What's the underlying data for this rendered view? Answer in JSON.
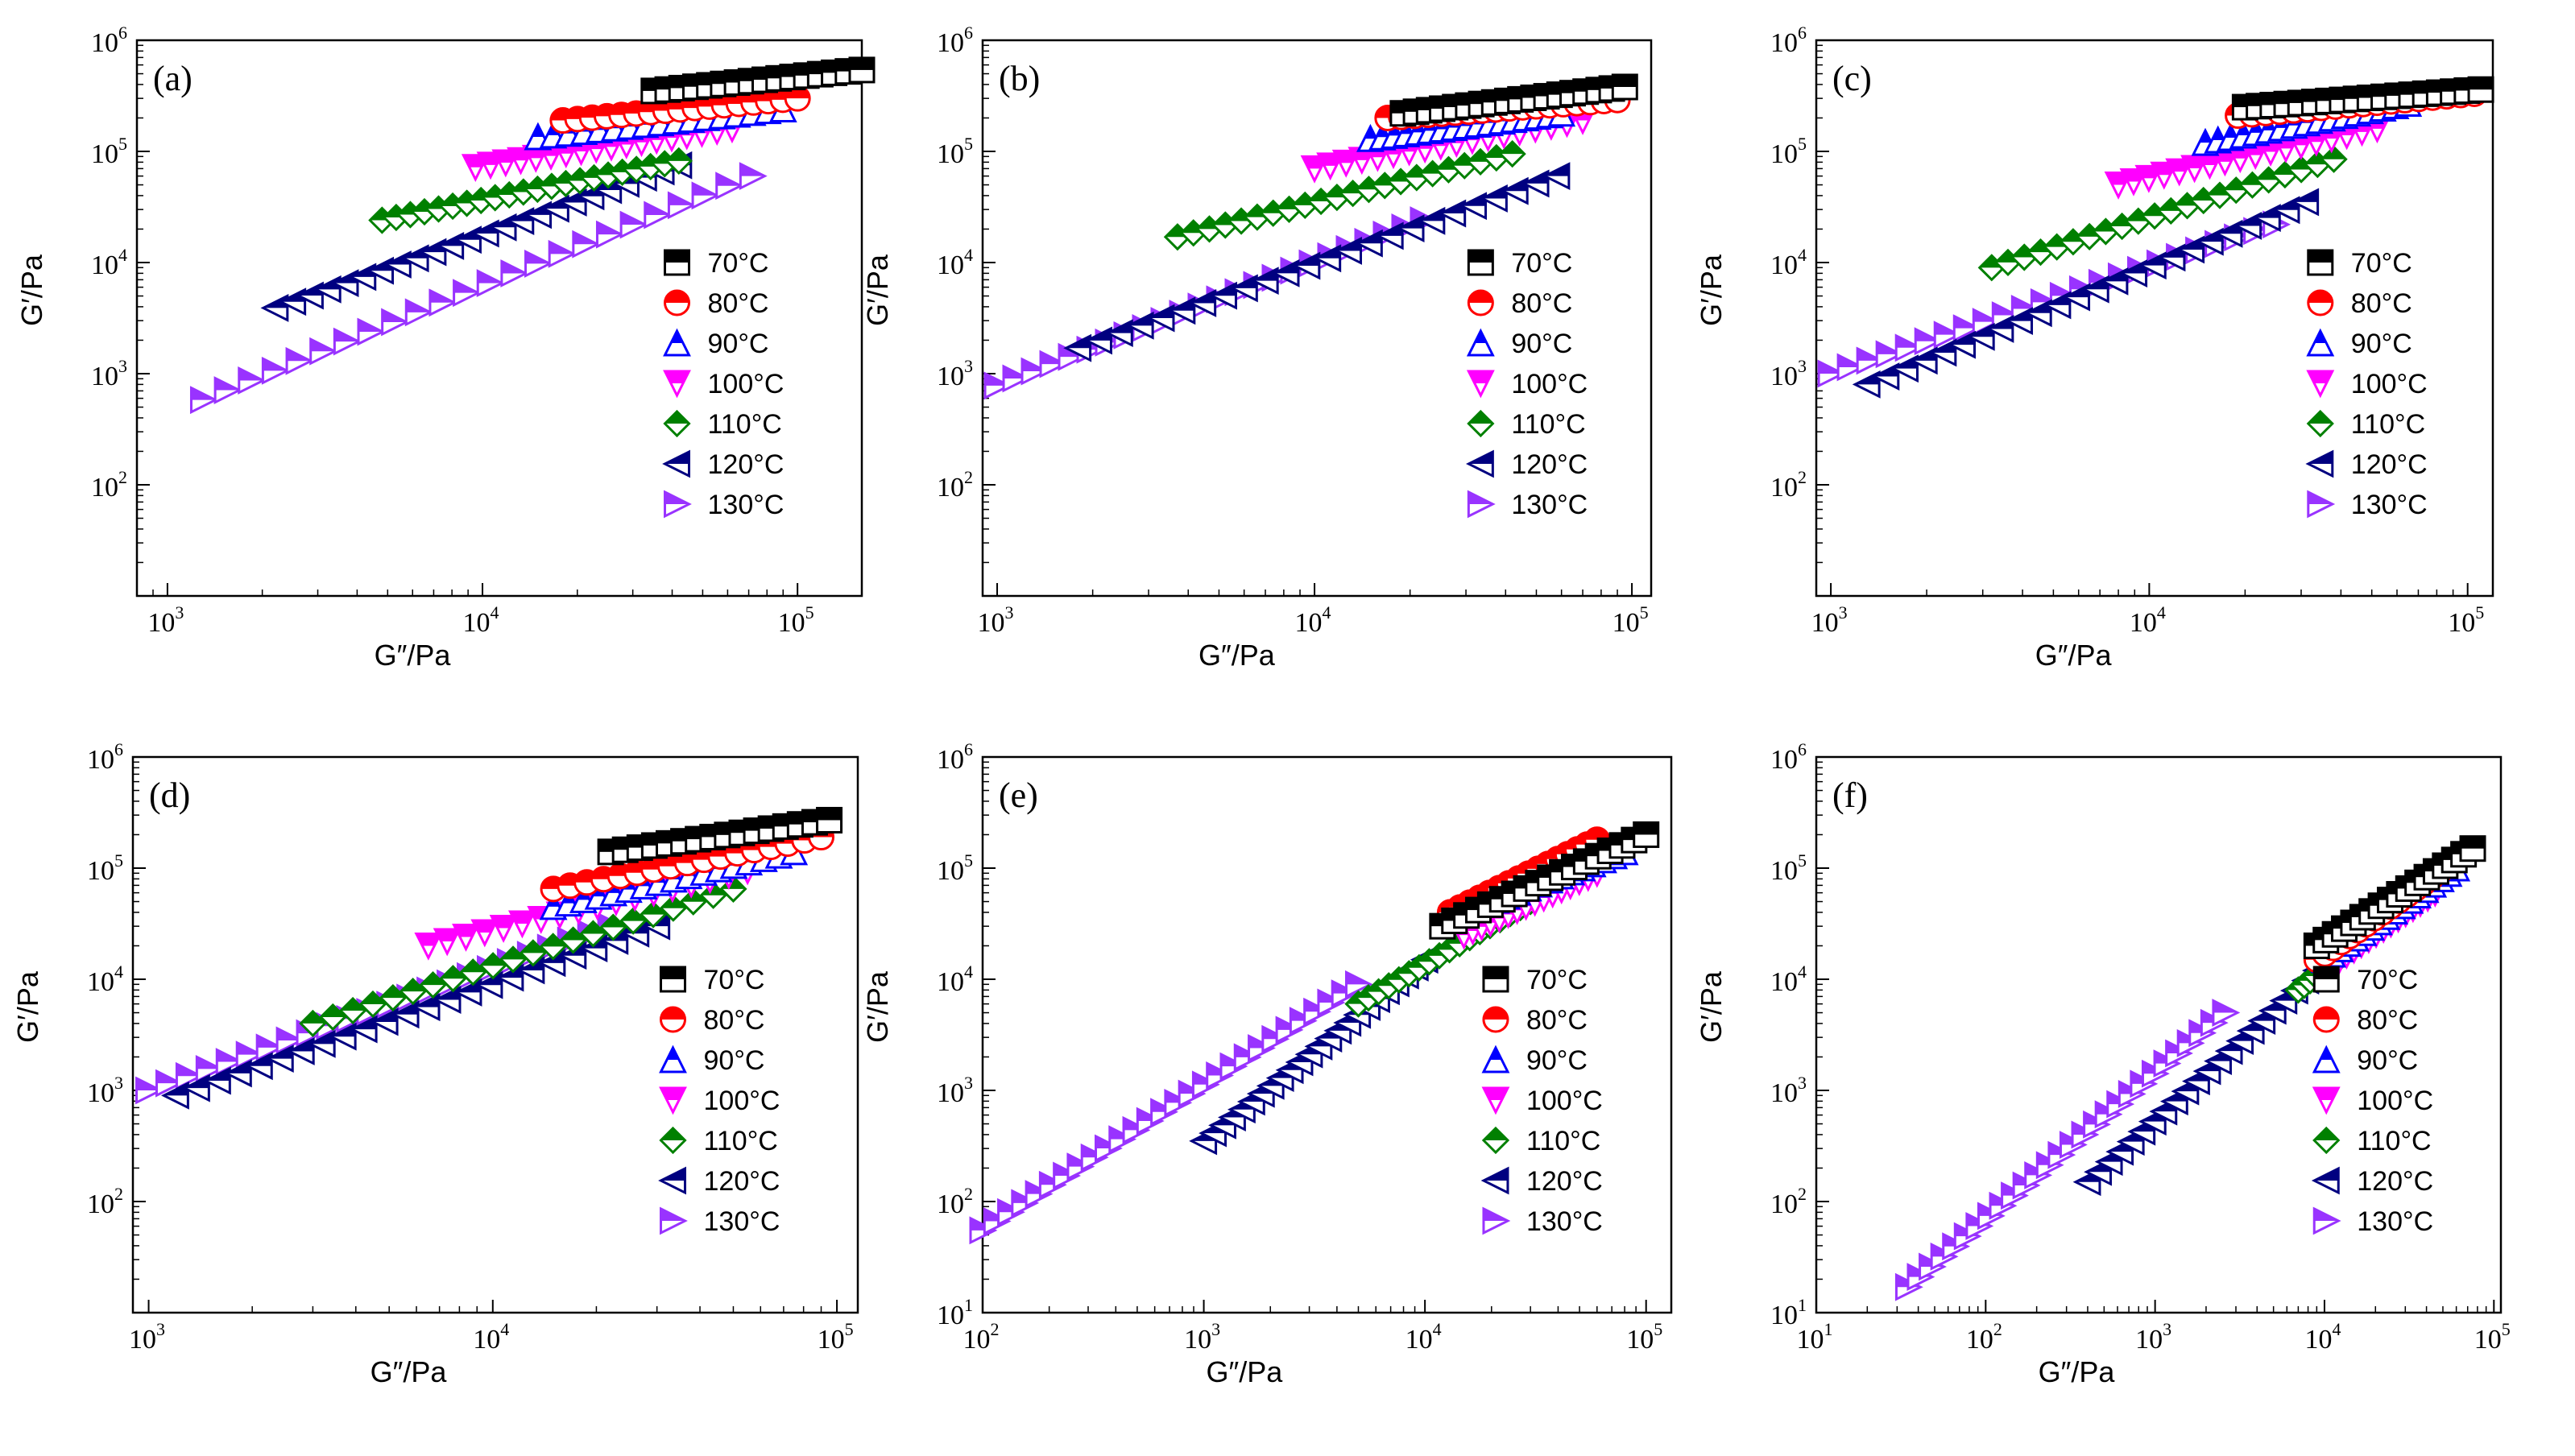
{
  "figure": {
    "legend_order": [
      "70°C",
      "80°C",
      "90°C",
      "100°C",
      "110°C",
      "120°C",
      "130°C"
    ],
    "series_styles": {
      "70°C": {
        "color": "#000000",
        "marker": "square"
      },
      "80°C": {
        "color": "#ff0000",
        "marker": "circle"
      },
      "90°C": {
        "color": "#0000ff",
        "marker": "triangle-up"
      },
      "100°C": {
        "color": "#ff00ff",
        "marker": "triangle-down"
      },
      "110°C": {
        "color": "#008000",
        "marker": "diamond"
      },
      "120°C": {
        "color": "#000080",
        "marker": "triangle-left"
      },
      "130°C": {
        "color": "#9933ff",
        "marker": "triangle-right"
      }
    }
  },
  "chart_data": [
    {
      "type": "scatter",
      "panel": "(a)",
      "xscale": "log",
      "yscale": "log",
      "xlabel": "G″/Pa",
      "ylabel": "G′/Pa",
      "xlim": [
        800,
        160000
      ],
      "ylim": [
        10,
        1000000
      ],
      "xticks": [
        {
          "base": "10",
          "exp": "3"
        },
        {
          "base": "10",
          "exp": "4"
        },
        {
          "base": "10",
          "exp": "5"
        }
      ],
      "yticks": [
        {
          "base": "10",
          "exp": "2"
        },
        {
          "base": "10",
          "exp": "3"
        },
        {
          "base": "10",
          "exp": "4"
        },
        {
          "base": "10",
          "exp": "5"
        },
        {
          "base": "10",
          "exp": "6"
        }
      ],
      "tick_values_x": [
        1000,
        10000,
        100000
      ],
      "tick_values_y": [
        100,
        1000,
        10000,
        100000,
        1000000
      ],
      "legend": [
        "70°C",
        "80°C",
        "90°C",
        "100°C",
        "110°C",
        "120°C",
        "130°C"
      ],
      "series": [
        {
          "name": "70°C",
          "start": [
            35000,
            350000
          ],
          "end": [
            160000,
            540000
          ],
          "n": 16
        },
        {
          "name": "80°C",
          "start": [
            18000,
            190000
          ],
          "end": [
            100000,
            300000
          ],
          "n": 17
        },
        {
          "name": "90°C",
          "start": [
            15000,
            135000
          ],
          "end": [
            90000,
            240000
          ],
          "n": 17
        },
        {
          "name": "100°C",
          "start": [
            9500,
            72000
          ],
          "end": [
            62000,
            160000
          ],
          "n": 18
        },
        {
          "name": "110°C",
          "start": [
            4800,
            24000
          ],
          "end": [
            42000,
            82000
          ],
          "n": 22
        },
        {
          "name": "120°C",
          "start": [
            2200,
            3900
          ],
          "end": [
            42000,
            75000
          ],
          "n": 24
        },
        {
          "name": "130°C",
          "start": [
            1300,
            580
          ],
          "end": [
            72000,
            60000
          ],
          "n": 24
        }
      ]
    },
    {
      "type": "scatter",
      "panel": "(b)",
      "xscale": "log",
      "yscale": "log",
      "xlabel": "G″/Pa",
      "ylabel": "G′/Pa",
      "xlim": [
        900,
        115000
      ],
      "ylim": [
        10,
        1000000
      ],
      "xticks": [
        {
          "base": "10",
          "exp": "3"
        },
        {
          "base": "10",
          "exp": "4"
        },
        {
          "base": "10",
          "exp": "5"
        }
      ],
      "yticks": [
        {
          "base": "10",
          "exp": "2"
        },
        {
          "base": "10",
          "exp": "3"
        },
        {
          "base": "10",
          "exp": "4"
        },
        {
          "base": "10",
          "exp": "5"
        },
        {
          "base": "10",
          "exp": "6"
        }
      ],
      "tick_values_x": [
        1000,
        10000,
        100000
      ],
      "tick_values_y": [
        100,
        1000,
        10000,
        100000,
        1000000
      ],
      "legend": [
        "70°C",
        "80°C",
        "90°C",
        "100°C",
        "110°C",
        "120°C",
        "130°C"
      ],
      "series": [
        {
          "name": "70°C",
          "start": [
            19000,
            220000
          ],
          "end": [
            95000,
            380000
          ],
          "n": 18
        },
        {
          "name": "80°C",
          "start": [
            17000,
            200000
          ],
          "end": [
            90000,
            290000
          ],
          "n": 18
        },
        {
          "name": "90°C",
          "start": [
            15000,
            130000
          ],
          "end": [
            60000,
            220000
          ],
          "n": 17
        },
        {
          "name": "100°C",
          "start": [
            10000,
            70000
          ],
          "end": [
            70000,
            190000
          ],
          "n": 18
        },
        {
          "name": "110°C",
          "start": [
            3700,
            17000
          ],
          "end": [
            42000,
            95000
          ],
          "n": 22
        },
        {
          "name": "120°C",
          "start": [
            1800,
            1700
          ],
          "end": [
            58000,
            60000
          ],
          "n": 24
        },
        {
          "name": "130°C",
          "start": [
            1000,
            780
          ],
          "end": [
            22000,
            24000
          ],
          "n": 24
        }
      ]
    },
    {
      "type": "scatter",
      "panel": "(c)",
      "xscale": "log",
      "yscale": "log",
      "xlabel": "G″/Pa",
      "ylabel": "G′/Pa",
      "xlim": [
        900,
        120000
      ],
      "ylim": [
        10,
        1000000
      ],
      "xticks": [
        {
          "base": "10",
          "exp": "3"
        },
        {
          "base": "10",
          "exp": "4"
        },
        {
          "base": "10",
          "exp": "5"
        }
      ],
      "yticks": [
        {
          "base": "10",
          "exp": "2"
        },
        {
          "base": "10",
          "exp": "3"
        },
        {
          "base": "10",
          "exp": "4"
        },
        {
          "base": "10",
          "exp": "5"
        },
        {
          "base": "10",
          "exp": "6"
        }
      ],
      "tick_values_x": [
        1000,
        10000,
        100000
      ],
      "tick_values_y": [
        100,
        1000,
        10000,
        100000,
        1000000
      ],
      "legend": [
        "70°C",
        "80°C",
        "90°C",
        "100°C",
        "110°C",
        "120°C",
        "130°C"
      ],
      "series": [
        {
          "name": "70°C",
          "start": [
            20000,
            250000
          ],
          "end": [
            110000,
            360000
          ],
          "n": 18
        },
        {
          "name": "80°C",
          "start": [
            19000,
            210000
          ],
          "end": [
            105000,
            330000
          ],
          "n": 18
        },
        {
          "name": "90°C",
          "start": [
            15000,
            120000
          ],
          "end": [
            65000,
            270000
          ],
          "n": 17
        },
        {
          "name": "100°C",
          "start": [
            8000,
            50000
          ],
          "end": [
            52000,
            160000
          ],
          "n": 18
        },
        {
          "name": "110°C",
          "start": [
            3200,
            9000
          ],
          "end": [
            38000,
            85000
          ],
          "n": 22
        },
        {
          "name": "120°C",
          "start": [
            1300,
            800
          ],
          "end": [
            31000,
            35000
          ],
          "n": 24
        },
        {
          "name": "130°C",
          "start": [
            1000,
            1000
          ],
          "end": [
            25000,
            22000
          ],
          "n": 24
        }
      ]
    },
    {
      "type": "scatter",
      "panel": "(d)",
      "xscale": "log",
      "yscale": "log",
      "xlabel": "G″/Pa",
      "ylabel": "G′/Pa",
      "xlim": [
        900,
        115000
      ],
      "ylim": [
        10,
        1000000
      ],
      "xticks": [
        {
          "base": "10",
          "exp": "3"
        },
        {
          "base": "10",
          "exp": "4"
        },
        {
          "base": "10",
          "exp": "5"
        }
      ],
      "yticks": [
        {
          "base": "10",
          "exp": "2"
        },
        {
          "base": "10",
          "exp": "3"
        },
        {
          "base": "10",
          "exp": "4"
        },
        {
          "base": "10",
          "exp": "5"
        },
        {
          "base": "10",
          "exp": "6"
        }
      ],
      "tick_values_x": [
        1000,
        10000,
        100000
      ],
      "tick_values_y": [
        100,
        1000,
        10000,
        100000,
        1000000
      ],
      "legend": [
        "70°C",
        "80°C",
        "90°C",
        "100°C",
        "110°C",
        "120°C",
        "130°C"
      ],
      "series": [
        {
          "name": "70°C",
          "start": [
            22000,
            140000
          ],
          "end": [
            95000,
            270000
          ],
          "n": 16
        },
        {
          "name": "80°C",
          "start": [
            15000,
            65000
          ],
          "end": [
            90000,
            190000
          ],
          "n": 17
        },
        {
          "name": "90°C",
          "start": [
            15000,
            45000
          ],
          "end": [
            75000,
            140000
          ],
          "n": 17
        },
        {
          "name": "100°C",
          "start": [
            6500,
            20000
          ],
          "end": [
            55000,
            95000
          ],
          "n": 18
        },
        {
          "name": "110°C",
          "start": [
            3000,
            4000
          ],
          "end": [
            50000,
            65000
          ],
          "n": 22
        },
        {
          "name": "120°C",
          "start": [
            1200,
            900
          ],
          "end": [
            30000,
            30000
          ],
          "n": 24
        },
        {
          "name": "130°C",
          "start": [
            1000,
            1000
          ],
          "end": [
            22000,
            30000
          ],
          "n": 24
        }
      ]
    },
    {
      "type": "scatter",
      "panel": "(e)",
      "xscale": "log",
      "yscale": "log",
      "xlabel": "G″/Pa",
      "ylabel": "G′/Pa",
      "xlim": [
        100,
        130000
      ],
      "ylim": [
        10,
        1000000
      ],
      "xticks": [
        {
          "base": "10",
          "exp": "2"
        },
        {
          "base": "10",
          "exp": "3"
        },
        {
          "base": "10",
          "exp": "4"
        },
        {
          "base": "10",
          "exp": "5"
        }
      ],
      "yticks": [
        {
          "base": "10",
          "exp": "1"
        },
        {
          "base": "10",
          "exp": "2"
        },
        {
          "base": "10",
          "exp": "3"
        },
        {
          "base": "10",
          "exp": "4"
        },
        {
          "base": "10",
          "exp": "5"
        },
        {
          "base": "10",
          "exp": "6"
        }
      ],
      "tick_values_x": [
        100,
        1000,
        10000,
        100000
      ],
      "tick_values_y": [
        10,
        100,
        1000,
        10000,
        100000,
        1000000
      ],
      "legend": [
        "70°C",
        "80°C",
        "90°C",
        "100°C",
        "110°C",
        "120°C",
        "130°C"
      ],
      "series": [
        {
          "name": "70°C",
          "start": [
            12000,
            30000
          ],
          "end": [
            100000,
            200000
          ],
          "n": 18
        },
        {
          "name": "80°C",
          "start": [
            13000,
            40000
          ],
          "end": [
            60000,
            180000
          ],
          "n": 16
        },
        {
          "name": "90°C",
          "start": [
            15000,
            40000
          ],
          "end": [
            80000,
            140000
          ],
          "n": 16
        },
        {
          "name": "100°C",
          "start": [
            15000,
            25000
          ],
          "end": [
            60000,
            90000
          ],
          "n": 16
        },
        {
          "name": "110°C",
          "start": [
            5000,
            6000
          ],
          "end": [
            30000,
            50000
          ],
          "n": 18
        },
        {
          "name": "120°C",
          "start": [
            1000,
            350
          ],
          "end": [
            10000,
            15000
          ],
          "n": 24
        },
        {
          "name": "130°C",
          "start": [
            100,
            55
          ],
          "end": [
            5000,
            9000
          ],
          "n": 28
        }
      ]
    },
    {
      "type": "scatter",
      "panel": "(f)",
      "xscale": "log",
      "yscale": "log",
      "xlabel": "G″/Pa",
      "ylabel": "G′/Pa",
      "xlim": [
        10,
        110000
      ],
      "ylim": [
        10,
        1000000
      ],
      "xticks": [
        {
          "base": "10",
          "exp": "1"
        },
        {
          "base": "10",
          "exp": "2"
        },
        {
          "base": "10",
          "exp": "3"
        },
        {
          "base": "10",
          "exp": "4"
        },
        {
          "base": "10",
          "exp": "5"
        }
      ],
      "yticks": [
        {
          "base": "10",
          "exp": "1"
        },
        {
          "base": "10",
          "exp": "2"
        },
        {
          "base": "10",
          "exp": "3"
        },
        {
          "base": "10",
          "exp": "4"
        },
        {
          "base": "10",
          "exp": "5"
        },
        {
          "base": "10",
          "exp": "6"
        }
      ],
      "tick_values_x": [
        10,
        100,
        1000,
        10000,
        100000
      ],
      "tick_values_y": [
        10,
        100,
        1000,
        10000,
        100000,
        1000000
      ],
      "legend": [
        "70°C",
        "80°C",
        "90°C",
        "100°C",
        "110°C",
        "120°C",
        "130°C"
      ],
      "series": [
        {
          "name": "70°C",
          "start": [
            9000,
            20000
          ],
          "end": [
            75000,
            150000
          ],
          "n": 18
        },
        {
          "name": "80°C",
          "start": [
            9000,
            15000
          ],
          "end": [
            60000,
            120000
          ],
          "n": 18
        },
        {
          "name": "90°C",
          "start": [
            10000,
            15000
          ],
          "end": [
            60000,
            100000
          ],
          "n": 18
        },
        {
          "name": "100°C",
          "start": [
            10000,
            12000
          ],
          "end": [
            45000,
            60000
          ],
          "n": 16
        },
        {
          "name": "110°C",
          "start": [
            7000,
            8000
          ],
          "end": [
            20000,
            28000
          ],
          "n": 14
        },
        {
          "name": "120°C",
          "start": [
            400,
            150
          ],
          "end": [
            9000,
            12000
          ],
          "n": 22
        },
        {
          "name": "130°C",
          "start": [
            35,
            17
          ],
          "end": [
            2600,
            5000
          ],
          "n": 28
        }
      ]
    }
  ]
}
